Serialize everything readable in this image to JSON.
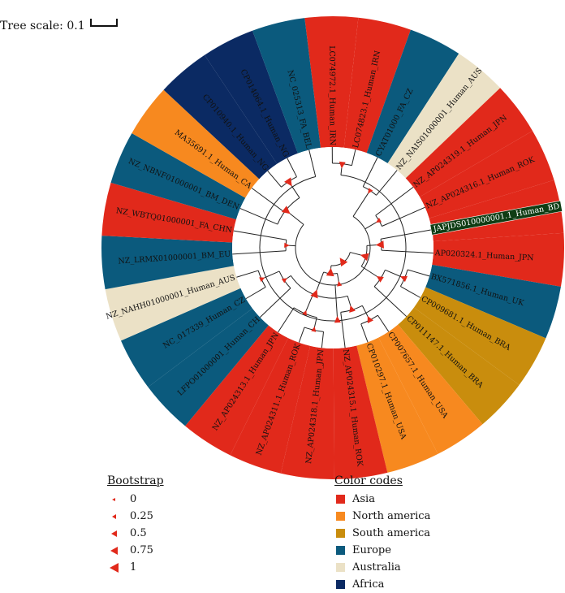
{
  "tree_scale": {
    "label": "Tree scale: 0.1"
  },
  "bootstrap_legend": {
    "title": "Bootstrap",
    "items": [
      {
        "label": "0",
        "value": 0
      },
      {
        "label": "0.25",
        "value": 0.25
      },
      {
        "label": "0.5",
        "value": 0.5
      },
      {
        "label": "0.75",
        "value": 0.75
      },
      {
        "label": "1",
        "value": 1
      }
    ]
  },
  "color_legend": {
    "title": "Color codes",
    "items": [
      {
        "label": "Asia",
        "color": "#e1291b"
      },
      {
        "label": "North america",
        "color": "#f7891f"
      },
      {
        "label": "South america",
        "color": "#c98d0d"
      },
      {
        "label": "Europe",
        "color": "#0b5a7d"
      },
      {
        "label": "Australia",
        "color": "#ebe1c6"
      },
      {
        "label": "Africa",
        "color": "#0b2a63"
      }
    ]
  },
  "tree": {
    "highlight_color": "#0f3d14",
    "leaves": [
      {
        "label": "LC074972.1_Human_IRN",
        "region": "Asia"
      },
      {
        "label": "LC074823.1_Human_IRN",
        "region": "Asia"
      },
      {
        "label": "CYAT01000_FA_CZ",
        "region": "Europe"
      },
      {
        "label": "NZ_NAIS01000001_Human_AUS",
        "region": "Australia"
      },
      {
        "label": "NZ_AP024319.1_Human_JPN",
        "region": "Asia"
      },
      {
        "label": "NZ_AP024316.1_Human_ROK",
        "region": "Asia"
      },
      {
        "label": "JAPJDS010000001.1_Human_BD",
        "region": "Asia",
        "highlight": true
      },
      {
        "label": "AP020324.1_Human_JPN",
        "region": "Asia"
      },
      {
        "label": "BX571856.1_Human_UK",
        "region": "Europe"
      },
      {
        "label": "CP009681.1_Human_BRA",
        "region": "South america"
      },
      {
        "label": "CP011147.1_Human_BRA",
        "region": "South america"
      },
      {
        "label": "CP007657.1_Human_USA",
        "region": "North america"
      },
      {
        "label": "CP010297.1_Human_USA",
        "region": "North america"
      },
      {
        "label": "NZ_AP024315.1_Human_ROK",
        "region": "Asia"
      },
      {
        "label": "NZ_AP024318.1_Human_JPN",
        "region": "Asia"
      },
      {
        "label": "NZ_AP024311.1_Human_ROK",
        "region": "Asia"
      },
      {
        "label": "NZ_AP024313.1_Human_JPN",
        "region": "Asia"
      },
      {
        "label": "LFPO01000001_Human_CH",
        "region": "Europe"
      },
      {
        "label": "NC_017339_Human_CZ",
        "region": "Europe"
      },
      {
        "label": "NZ_NAHH01000001_Human_AUS",
        "region": "Australia"
      },
      {
        "label": "NZ_LRMX01000001_BM_EU",
        "region": "Europe"
      },
      {
        "label": "NZ_WBTQ01000001_FA_CHN",
        "region": "Asia"
      },
      {
        "label": "NZ_NBNF01000001_BM_DEN",
        "region": "Europe"
      },
      {
        "label": "MA35691.1_Human_CA",
        "region": "North america"
      },
      {
        "label": "CP010940.1_Human_NG",
        "region": "Africa"
      },
      {
        "label": "CP014064.1_Human_NG",
        "region": "Africa"
      },
      {
        "label": "NC_025313_FA_BEL",
        "region": "Europe"
      }
    ]
  }
}
